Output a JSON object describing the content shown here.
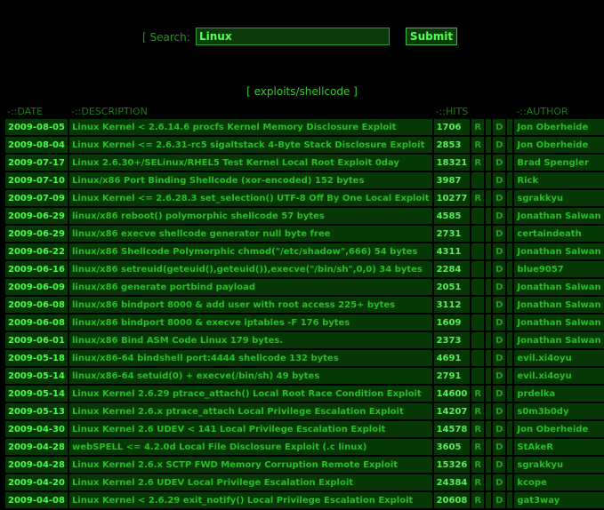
{
  "search": {
    "label": "[ Search:",
    "value": "Linux",
    "submit_label": "Submit"
  },
  "section_title": "[ exploits/shellcode ]",
  "columns": {
    "date": "-::DATE",
    "description": "-::DESCRIPTION",
    "hits": "-::HITS",
    "author": "-::AUTHOR"
  },
  "colors": {
    "background": "#000000",
    "row": "#053805",
    "text": "#22c022",
    "date": "#44ff44"
  },
  "rows": [
    {
      "date": "2009-08-05",
      "desc": "Linux Kernel < 2.6.14.6 procfs Kernel Memory Disclosure Exploit",
      "hits": "1706",
      "r": "R",
      "d": "D",
      "author": "Jon Oberheide"
    },
    {
      "date": "2009-08-04",
      "desc": "Linux Kernel <= 2.6.31-rc5 sigaltstack 4-Byte Stack Disclosure Exploit",
      "hits": "2853",
      "r": "R",
      "d": "D",
      "author": "Jon Oberheide"
    },
    {
      "date": "2009-07-17",
      "desc": "Linux 2.6.30+/SELinux/RHEL5 Test Kernel Local Root Exploit 0day",
      "hits": "18321",
      "r": "R",
      "d": "D",
      "author": "Brad Spengler"
    },
    {
      "date": "2009-07-10",
      "desc": "Linux/x86 Port Binding Shellcode (xor-encoded) 152 bytes",
      "hits": "3987",
      "r": "",
      "d": "D",
      "author": "Rick"
    },
    {
      "date": "2009-07-09",
      "desc": "Linux Kernel <= 2.6.28.3 set_selection() UTF-8 Off By One Local Exploit",
      "hits": "10277",
      "r": "R",
      "d": "D",
      "author": "sgrakkyu"
    },
    {
      "date": "2009-06-29",
      "desc": "linux/x86 reboot() polymorphic shellcode 57 bytes",
      "hits": "4585",
      "r": "",
      "d": "D",
      "author": "Jonathan Salwan"
    },
    {
      "date": "2009-06-29",
      "desc": "linux/x86 execve shellcode generator null byte free",
      "hits": "2731",
      "r": "",
      "d": "D",
      "author": "certaindeath"
    },
    {
      "date": "2009-06-22",
      "desc": "linux/x86 Shellcode Polymorphic chmod(\"/etc/shadow\",666) 54 bytes",
      "hits": "4311",
      "r": "",
      "d": "D",
      "author": "Jonathan Salwan"
    },
    {
      "date": "2009-06-16",
      "desc": "linux/x86 setreuid(geteuid(),geteuid()),execve(\"/bin/sh\",0,0) 34 bytes",
      "hits": "2284",
      "r": "",
      "d": "D",
      "author": "blue9057"
    },
    {
      "date": "2009-06-09",
      "desc": "linux/x86 generate portbind payload",
      "hits": "2051",
      "r": "",
      "d": "D",
      "author": "Jonathan Salwan"
    },
    {
      "date": "2009-06-08",
      "desc": "linux/x86 bindport 8000 & add user with root access 225+ bytes",
      "hits": "3112",
      "r": "",
      "d": "D",
      "author": "Jonathan Salwan"
    },
    {
      "date": "2009-06-08",
      "desc": "linux/x86 bindport 8000 & execve iptables -F 176 bytes",
      "hits": "1609",
      "r": "",
      "d": "D",
      "author": "Jonathan Salwan"
    },
    {
      "date": "2009-06-01",
      "desc": "linux/x86 Bind ASM Code Linux 179 bytes.",
      "hits": "2373",
      "r": "",
      "d": "D",
      "author": "Jonathan Salwan"
    },
    {
      "date": "2009-05-18",
      "desc": "linux/x86-64 bindshell port:4444 shellcode 132 bytes",
      "hits": "4691",
      "r": "",
      "d": "D",
      "author": "evil.xi4oyu"
    },
    {
      "date": "2009-05-14",
      "desc": "linux/x86-64 setuid(0) + execve(/bin/sh) 49 bytes",
      "hits": "2791",
      "r": "",
      "d": "D",
      "author": "evil.xi4oyu"
    },
    {
      "date": "2009-05-14",
      "desc": "Linux Kernel 2.6.29 ptrace_attach() Local Root Race Condition Exploit",
      "hits": "14600",
      "r": "R",
      "d": "D",
      "author": "prdelka"
    },
    {
      "date": "2009-05-13",
      "desc": "Linux Kernel 2.6.x ptrace_attach Local Privilege Escalation Exploit",
      "hits": "14207",
      "r": "R",
      "d": "D",
      "author": "s0m3b0dy"
    },
    {
      "date": "2009-04-30",
      "desc": "Linux Kernel 2.6 UDEV < 141 Local Privilege Escalation Exploit",
      "hits": "14578",
      "r": "R",
      "d": "D",
      "author": "Jon Oberheide"
    },
    {
      "date": "2009-04-28",
      "desc": "webSPELL <= 4.2.0d Local File Disclosure Exploit (.c linux)",
      "hits": "3605",
      "r": "R",
      "d": "D",
      "author": "StAkeR"
    },
    {
      "date": "2009-04-28",
      "desc": "Linux Kernel 2.6.x SCTP FWD Memory Corruption Remote Exploit",
      "hits": "15326",
      "r": "R",
      "d": "D",
      "author": "sgrakkyu"
    },
    {
      "date": "2009-04-20",
      "desc": "Linux Kernel 2.6 UDEV Local Privilege Escalation Exploit",
      "hits": "24384",
      "r": "R",
      "d": "D",
      "author": "kcope"
    },
    {
      "date": "2009-04-08",
      "desc": "Linux Kernel < 2.6.29 exit_notify() Local Privilege Escalation Exploit",
      "hits": "20608",
      "r": "R",
      "d": "D",
      "author": "gat3way"
    }
  ]
}
